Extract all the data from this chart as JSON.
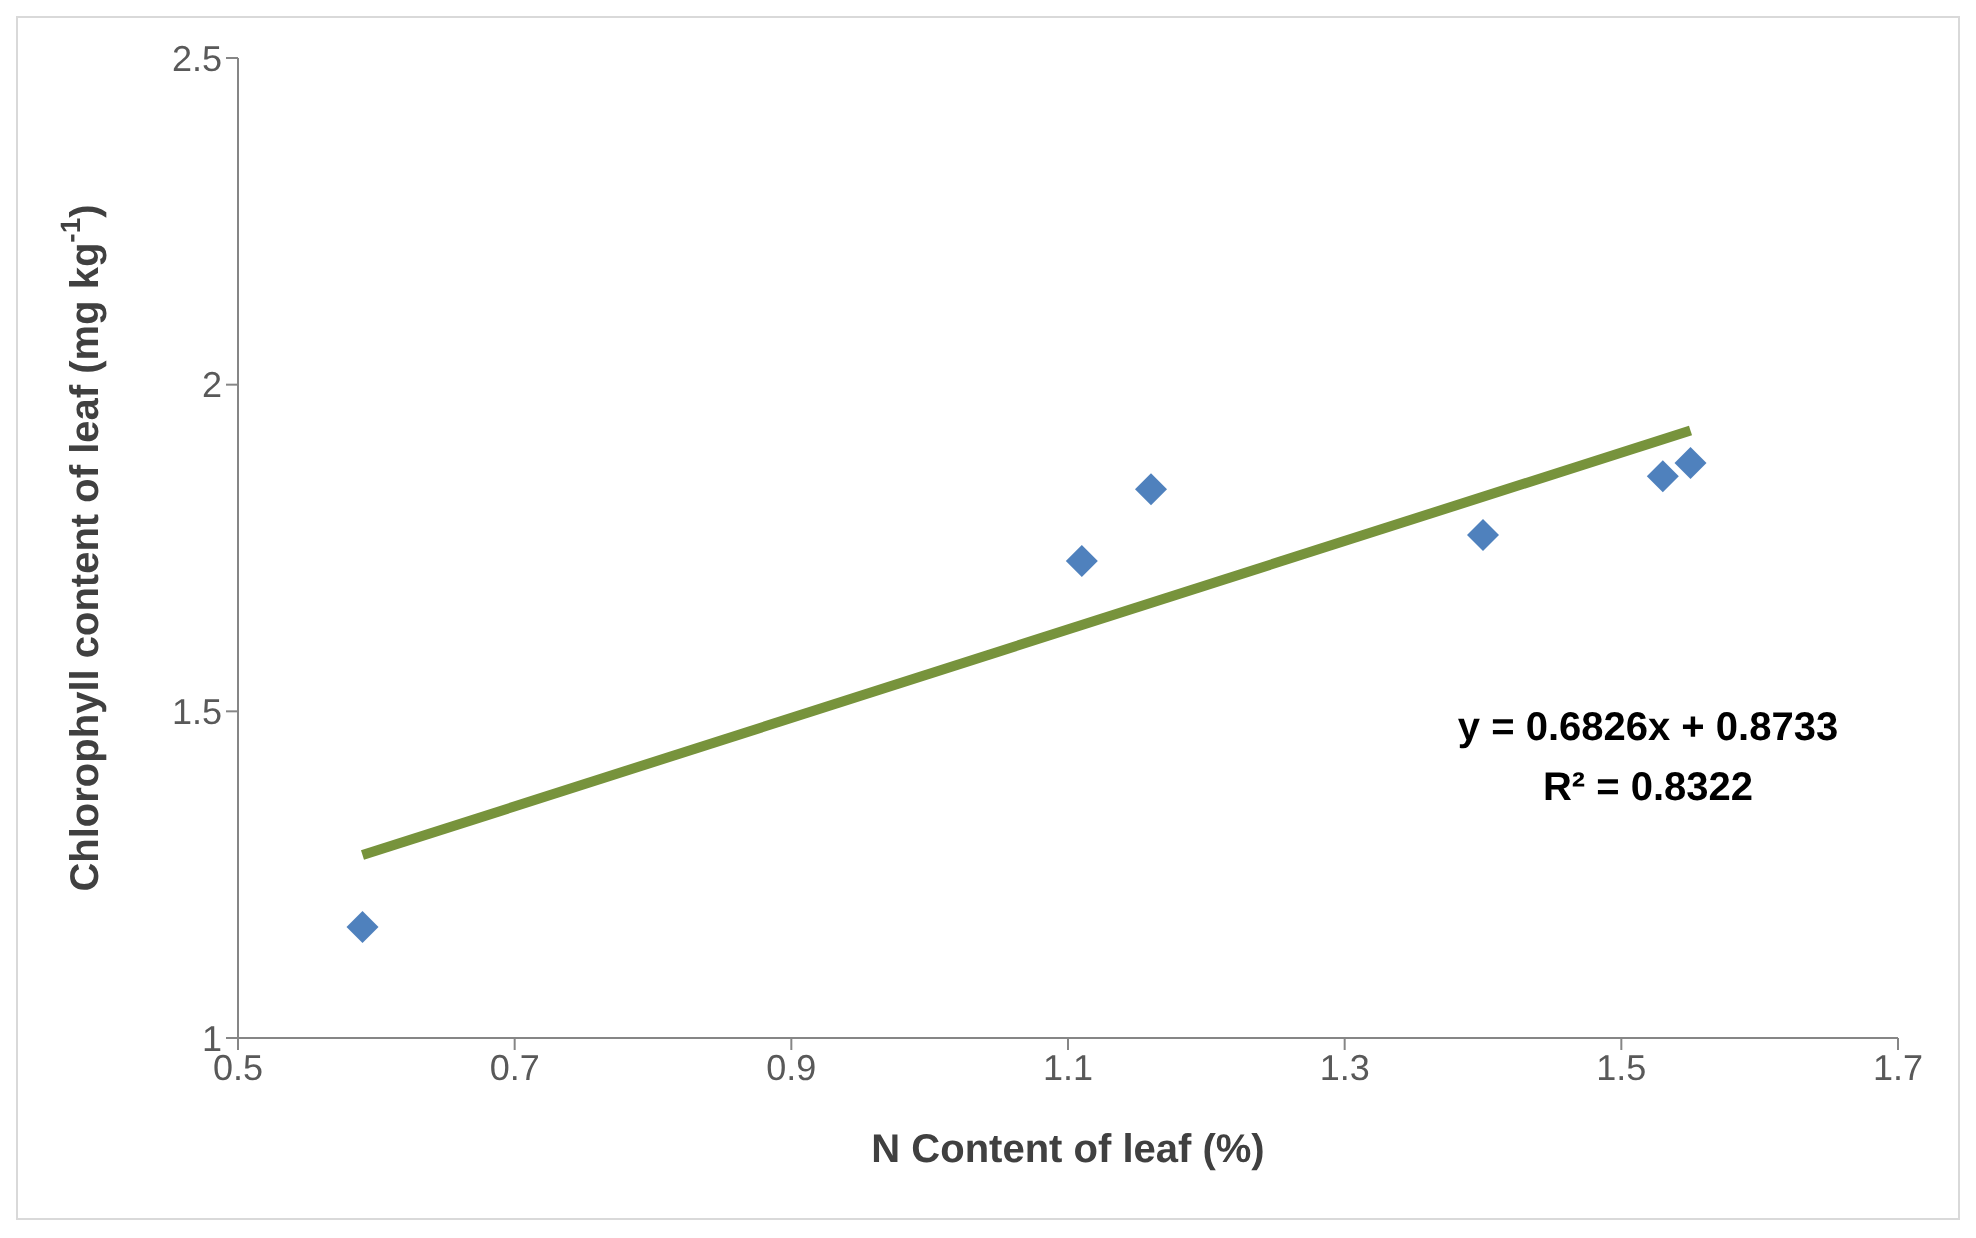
{
  "chart_data": {
    "type": "scatter",
    "xlabel": "N Content of leaf (%)",
    "ylabel": "Chlorophyll content of leaf (mg kg$^{-1}$)",
    "xlim": [
      0.5,
      1.7
    ],
    "xticks": [
      0.5,
      0.7,
      0.9,
      1.1,
      1.3,
      1.5,
      1.7
    ],
    "ylim": [
      1,
      2.5
    ],
    "yticks": [
      1,
      1.5,
      2,
      2.5
    ],
    "grid": false,
    "legend": false,
    "marker": "diamond",
    "series": [
      {
        "color": "#4f81bd",
        "x": [
          0.59,
          1.11,
          1.16,
          1.4,
          1.53,
          1.55
        ],
        "values": [
          1.17,
          1.73,
          1.84,
          1.77,
          1.86,
          1.88
        ]
      },
      {
        "type": "line",
        "color": "#77933c",
        "marker": "none",
        "line_style": "solid",
        "x": [
          0.59,
          1.55
        ],
        "values": [
          1.28,
          1.93
        ]
      }
    ],
    "annotations": [
      "y = 0.6826x + 0.8733",
      "R² = 0.8322"
    ]
  }
}
